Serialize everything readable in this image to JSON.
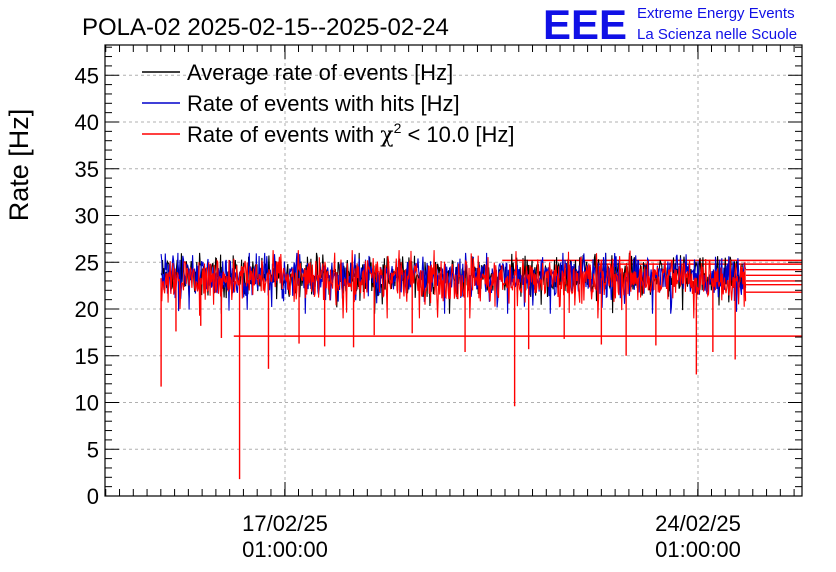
{
  "header": {
    "title": "POLA-02 2025-02-15--2025-02-24",
    "logo_text": "EEE",
    "logo_line1": "Extreme Energy Events",
    "logo_line2": "La Scienza nelle Scuole"
  },
  "colors": {
    "average": "#000000",
    "hits": "#0000cc",
    "chi2": "#ff0000",
    "logo": "#1010e6",
    "grid": "#b0b0b0"
  },
  "legend": {
    "average": "Average rate of events [Hz]",
    "hits": "Rate of events with hits [Hz]",
    "chi2_prefix": "Rate of events with ",
    "chi2_symbol": "χ",
    "chi2_sup": "2",
    "chi2_suffix": " < 10.0 [Hz]"
  },
  "chart_data": {
    "type": "line",
    "title": "POLA-02 2025-02-15--2025-02-24",
    "ylabel": "Rate [Hz]",
    "xlabel": "",
    "ylim": [
      0,
      48
    ],
    "yticks": [
      0,
      5,
      10,
      15,
      20,
      25,
      30,
      35,
      40,
      45
    ],
    "xlim_days": [
      0,
      8.45
    ],
    "xticks": [
      {
        "day": 2.17,
        "line1": "17/02/25",
        "line2": "01:00:00"
      },
      {
        "day": 7.17,
        "line1": "24/02/25",
        "line2": "01:00:00"
      }
    ],
    "grid": true,
    "legend_position": "top-left",
    "series": [
      {
        "name": "Average rate of events [Hz]",
        "color": "#000000",
        "start_day": 0.67,
        "end_day": 7.75,
        "mean": 23.6,
        "typical_min": 21.0,
        "typical_max": 25.7
      },
      {
        "name": "Rate of events with hits [Hz]",
        "color": "#0000cc",
        "start_day": 0.67,
        "end_day": 7.75,
        "mean": 23.6,
        "typical_min": 21.0,
        "typical_max": 25.7
      },
      {
        "name": "Rate of events with χ2 < 10.0 [Hz]",
        "color": "#ff0000",
        "start_day": 0.67,
        "end_day": 7.75,
        "mean": 23.3,
        "typical_min": 20.5,
        "typical_max": 26.0
      }
    ],
    "dips": [
      {
        "day": 0.67,
        "value": 11.7
      },
      {
        "day": 0.85,
        "value": 17.6
      },
      {
        "day": 1.62,
        "value": 1.8
      },
      {
        "day": 1.15,
        "value": 18.2
      },
      {
        "day": 1.4,
        "value": 16.9
      },
      {
        "day": 1.97,
        "value": 13.6
      },
      {
        "day": 2.34,
        "value": 16.3
      },
      {
        "day": 2.65,
        "value": 16.0
      },
      {
        "day": 3.0,
        "value": 15.9
      },
      {
        "day": 3.25,
        "value": 17.2
      },
      {
        "day": 3.71,
        "value": 17.4
      },
      {
        "day": 4.35,
        "value": 15.4
      },
      {
        "day": 4.95,
        "value": 9.6
      },
      {
        "day": 5.12,
        "value": 15.7
      },
      {
        "day": 5.55,
        "value": 16.8
      },
      {
        "day": 6.0,
        "value": 16.2
      },
      {
        "day": 6.3,
        "value": 15.0
      },
      {
        "day": 6.66,
        "value": 16.1
      },
      {
        "day": 7.15,
        "value": 13.0
      },
      {
        "day": 7.35,
        "value": 15.4
      },
      {
        "day": 7.62,
        "value": 14.6
      }
    ],
    "flat_lines": [
      {
        "start_day": 1.55,
        "end_day": 8.45,
        "value": 17.1
      },
      {
        "start_day": 4.8,
        "end_day": 8.45,
        "value": 25.2
      },
      {
        "start_day": 5.9,
        "end_day": 8.45,
        "value": 24.8
      },
      {
        "start_day": 7.75,
        "end_day": 8.45,
        "value": 24.2
      },
      {
        "start_day": 7.75,
        "end_day": 8.45,
        "value": 23.6
      },
      {
        "start_day": 7.75,
        "end_day": 8.45,
        "value": 23.0
      },
      {
        "start_day": 7.75,
        "end_day": 8.45,
        "value": 22.6
      },
      {
        "start_day": 7.75,
        "end_day": 8.45,
        "value": 21.8
      }
    ]
  }
}
